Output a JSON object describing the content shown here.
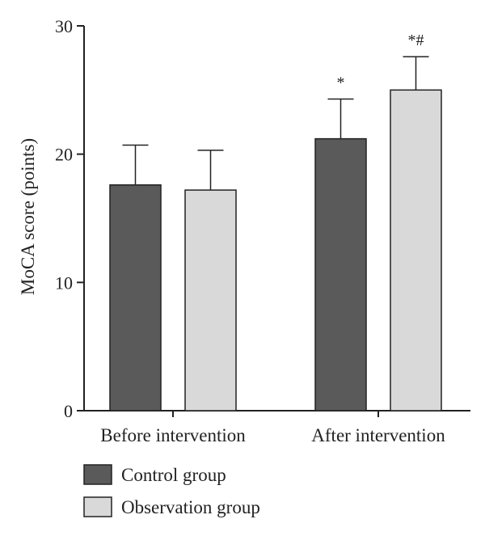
{
  "chart_data": {
    "type": "bar",
    "title": "",
    "xlabel": "",
    "ylabel": "MoCA score (points)",
    "ylim": [
      0,
      30
    ],
    "yticks": [
      0,
      10,
      20,
      30
    ],
    "grid": false,
    "legend_position": "bottom-left",
    "categories": [
      "Before intervention",
      "After intervention"
    ],
    "series": [
      {
        "name": "Control group",
        "color": "#5a5a5a",
        "values": [
          17.6,
          21.2
        ],
        "errors": [
          3.1,
          3.1
        ],
        "annotations": [
          "",
          "*"
        ]
      },
      {
        "name": "Observation group",
        "color": "#d9d9d9",
        "values": [
          17.2,
          25.0
        ],
        "errors": [
          3.1,
          2.6
        ],
        "annotations": [
          "",
          "*#"
        ]
      }
    ]
  }
}
